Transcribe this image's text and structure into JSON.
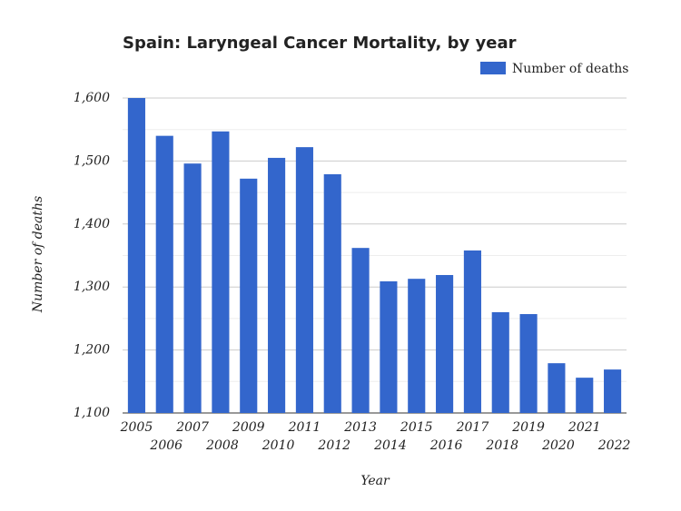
{
  "chart_data": {
    "type": "bar",
    "title": "Spain: Laryngeal Cancer Mortality, by year",
    "x_label": "Year",
    "y_label": "Number of deaths",
    "categories": [
      "2005",
      "2006",
      "2007",
      "2008",
      "2009",
      "2010",
      "2011",
      "2012",
      "2013",
      "2014",
      "2015",
      "2016",
      "2017",
      "2018",
      "2019",
      "2020",
      "2021",
      "2022"
    ],
    "series": [
      {
        "name": "Number of deaths",
        "color": "#3366cc",
        "values": [
          1600,
          1540,
          1496,
          1547,
          1472,
          1505,
          1522,
          1479,
          1362,
          1309,
          1313,
          1319,
          1358,
          1260,
          1257,
          1179,
          1156,
          1169
        ]
      }
    ],
    "ylim": [
      1100,
      1600
    ],
    "yticks": [
      {
        "value": 1100,
        "label": "1,100"
      },
      {
        "value": 1200,
        "label": "1,200"
      },
      {
        "value": 1300,
        "label": "1,300"
      },
      {
        "value": 1400,
        "label": "1,400"
      },
      {
        "value": 1500,
        "label": "1,500"
      },
      {
        "value": 1600,
        "label": "1,600"
      }
    ],
    "y_minor_ticks": [
      1150,
      1250,
      1350,
      1450,
      1550
    ],
    "grid": true,
    "legend": "top-right"
  }
}
